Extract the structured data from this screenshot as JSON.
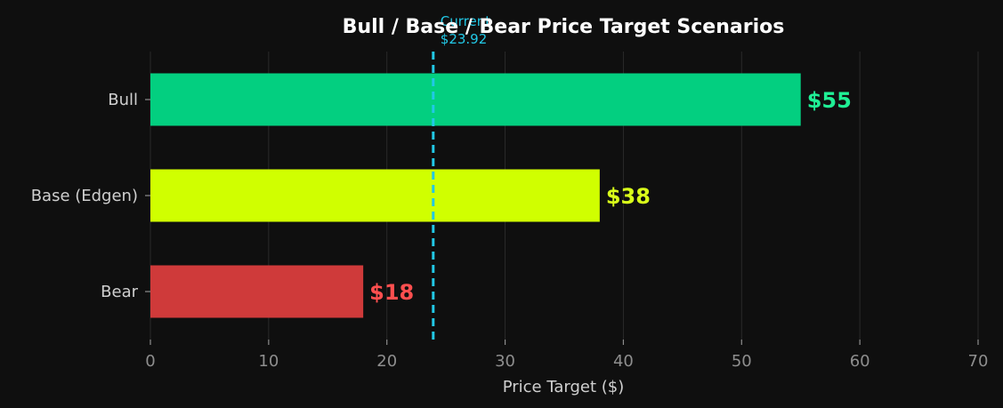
{
  "chart_data": {
    "type": "bar",
    "orientation": "horizontal",
    "title": "Bull / Base / Bear Price Target Scenarios",
    "xlabel": "Price Target ($)",
    "ylabel": "",
    "xlim": [
      0,
      70
    ],
    "xticks": [
      0,
      10,
      20,
      30,
      40,
      50,
      60,
      70
    ],
    "grid": "vertical",
    "categories": [
      "Bull",
      "Base (Edgen)",
      "Bear"
    ],
    "values": [
      55,
      38,
      18
    ],
    "value_labels": [
      "$55",
      "$38",
      "$18"
    ],
    "bar_colors": [
      "#03cf80",
      "#d0ff00",
      "#cf3a3a"
    ],
    "label_colors": [
      "#1fef95",
      "#d9ff1a",
      "#ff4f4f"
    ],
    "reference_line": {
      "value": 23.92,
      "label_line1": "Current",
      "label_line2": "$23.92",
      "color": "#22c8e6",
      "style": "dashed"
    },
    "background": "#0f0f0f",
    "grid_color": "#2a2a2a",
    "axis_color": "#8e8e8e"
  }
}
